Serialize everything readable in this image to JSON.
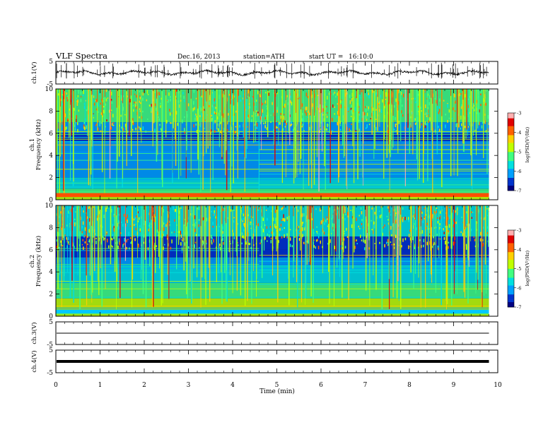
{
  "header": {
    "title": "VLF  Spectra",
    "date": "Dec.16, 2013",
    "station": "station=ATH",
    "start_label": "start  UT  =",
    "start_time": "16:10:0"
  },
  "chart_data": [
    {
      "type": "line",
      "panel": "ch1-waveform",
      "ylabel": "ch.1(V)",
      "ylim": [
        -5,
        5
      ],
      "yticks": [
        "5",
        "-5"
      ],
      "x_range_min": [
        0,
        9.8
      ],
      "series": [
        {
          "values_note": "",
          "baseline": 0.0,
          "amplitude": 1.0
        }
      ],
      "color": "#000000"
    },
    {
      "type": "heatmap",
      "panel": "ch1-spectrogram",
      "ylabel_channel": "ch.1",
      "ylabel": "Frequency (kHz)",
      "ylim": [
        0,
        10
      ],
      "yticks": [
        "0",
        "2",
        "4",
        "6",
        "8",
        "10"
      ],
      "x_range_min": [
        0,
        9.8
      ],
      "colorbar": {
        "label": "log(PSD(V²/Hz)",
        "ticks": [
          "-3",
          "-4",
          "-5",
          "-6",
          "-7"
        ],
        "range": [
          -7,
          -3
        ]
      }
    },
    {
      "type": "heatmap",
      "panel": "ch2-spectrogram",
      "ylabel_channel": "ch.2",
      "ylabel": "Frequency (kHz)",
      "ylim": [
        0,
        10
      ],
      "yticks": [
        "0",
        "2",
        "4",
        "6",
        "8",
        "10"
      ],
      "x_range_min": [
        0,
        9.8
      ],
      "colorbar": {
        "label": "log(PSD(V²/Hz)",
        "ticks": [
          "-3",
          "-4",
          "-5",
          "-6",
          "-7"
        ],
        "range": [
          -7,
          -3
        ]
      }
    },
    {
      "type": "line",
      "panel": "ch3-waveform",
      "ylabel": "ch.3(V)",
      "ylim": [
        -5,
        5
      ],
      "yticks": [
        "5",
        "-5"
      ],
      "series": [
        {
          "baseline": 0.0
        }
      ]
    },
    {
      "type": "line",
      "panel": "ch4-waveform",
      "ylabel": "ch.4(V)",
      "ylim": [
        -5,
        5
      ],
      "yticks": [
        "5",
        "-5"
      ],
      "series": [
        {
          "baseline": 0.0
        }
      ]
    }
  ],
  "x_axis": {
    "label": "Time (min)",
    "xlim": [
      0,
      10
    ],
    "ticks": [
      "0",
      "1",
      "2",
      "3",
      "4",
      "5",
      "6",
      "7",
      "8",
      "9",
      "10"
    ]
  },
  "colors": {
    "colormap": [
      "#000080",
      "#0033cc",
      "#00a0ff",
      "#00e0e0",
      "#40ff80",
      "#c0ff00",
      "#ffd000",
      "#ff6000",
      "#e00000",
      "#ffb0b0"
    ]
  }
}
